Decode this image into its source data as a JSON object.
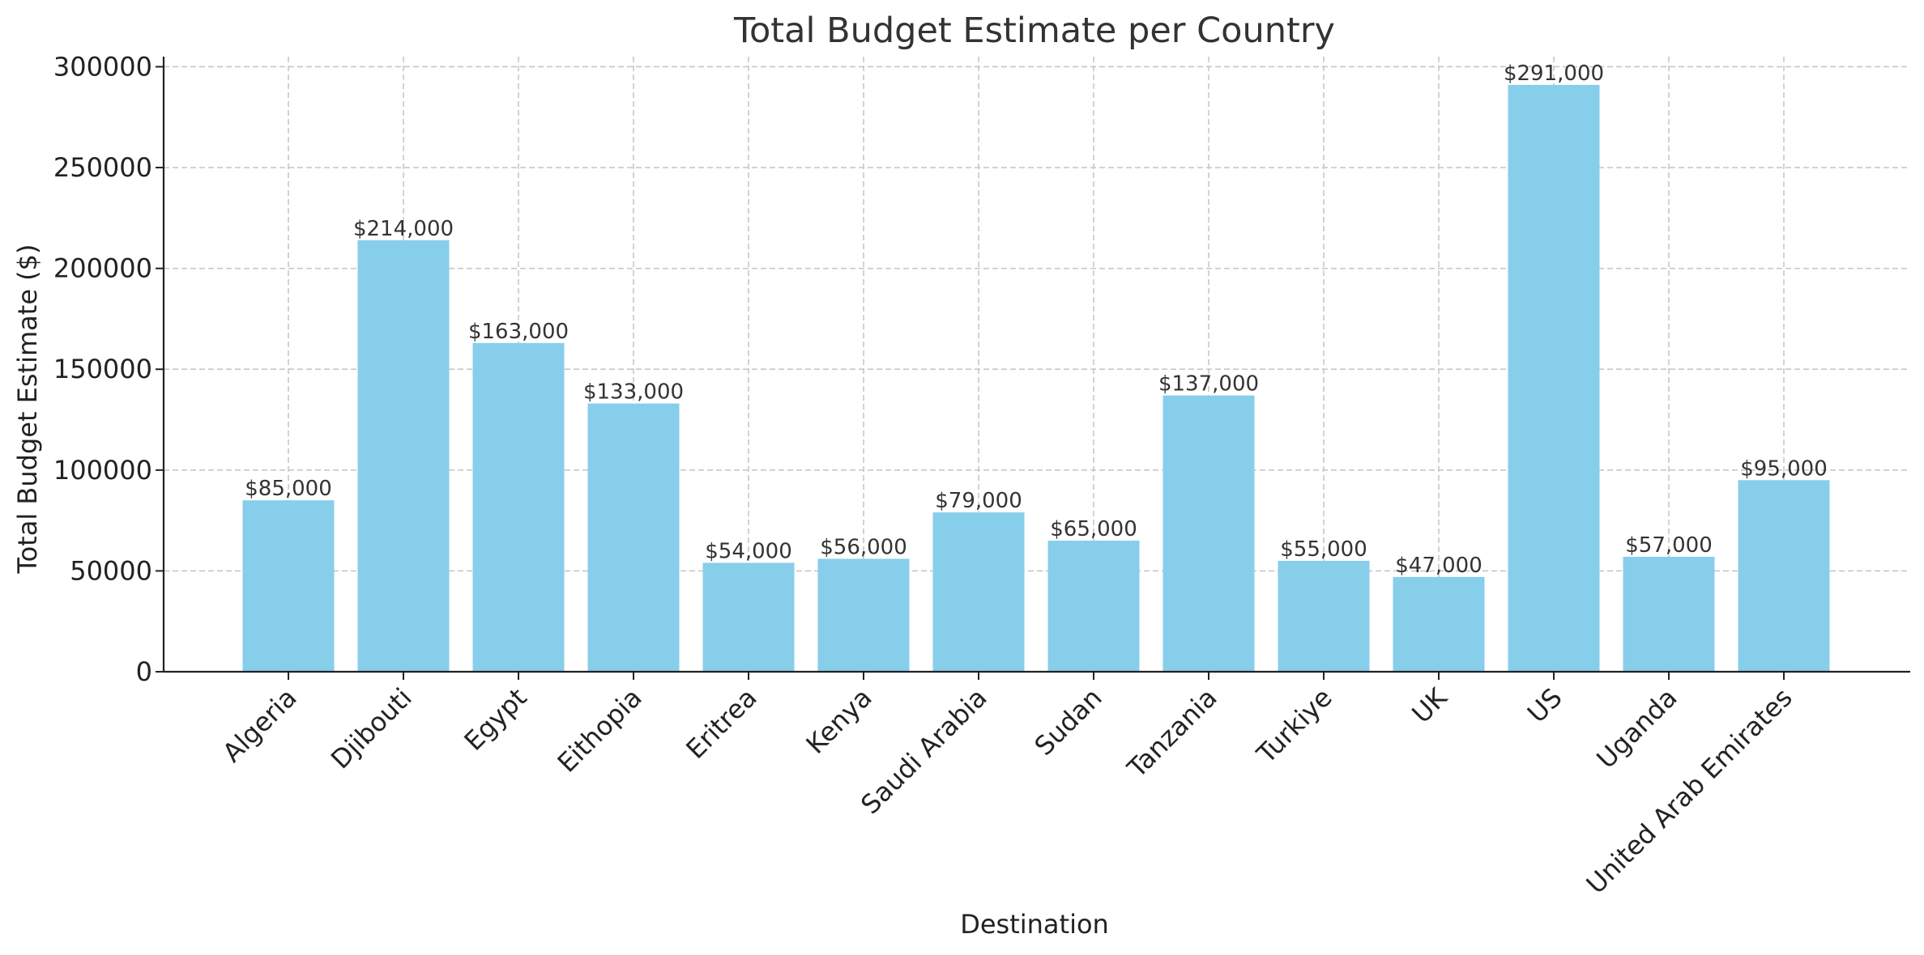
{
  "chart_data": {
    "type": "bar",
    "title": "Total Budget Estimate per Country",
    "xlabel": "Destination",
    "ylabel": "Total Budget Estimate ($)",
    "categories": [
      "Algeria",
      "Djibouti",
      "Egypt",
      "Eithopia",
      "Eritrea",
      "Kenya",
      "Saudi Arabia",
      "Sudan",
      "Tanzania",
      "Turkiye",
      "UK",
      "US",
      "Uganda",
      "United Arab Emirates"
    ],
    "values": [
      85000,
      214000,
      163000,
      133000,
      54000,
      56000,
      79000,
      65000,
      137000,
      55000,
      47000,
      291000,
      57000,
      95000
    ],
    "data_labels": [
      "$85,000",
      "$214,000",
      "$163,000",
      "$133,000",
      "$54,000",
      "$56,000",
      "$79,000",
      "$65,000",
      "$137,000",
      "$55,000",
      "$47,000",
      "$291,000",
      "$57,000",
      "$95,000"
    ],
    "yticks": [
      0,
      50000,
      100000,
      150000,
      200000,
      250000,
      300000
    ],
    "ytick_labels": [
      "0",
      "50000",
      "100000",
      "150000",
      "200000",
      "250000",
      "300000"
    ],
    "ylim": [
      0,
      305000
    ],
    "grid": true,
    "bar_color": "#87ceeb"
  }
}
